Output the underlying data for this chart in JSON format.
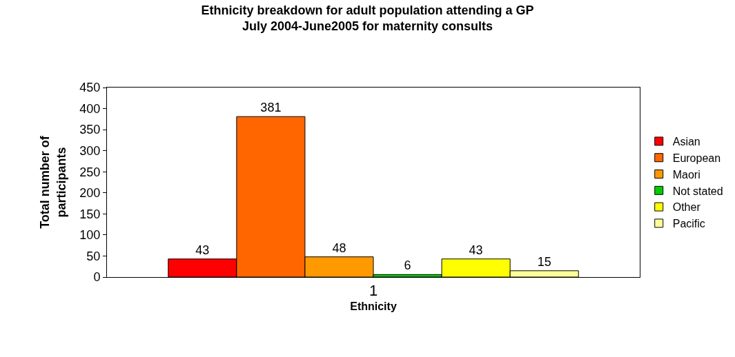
{
  "chart_data": {
    "type": "bar",
    "title": "Ethnicity breakdown for adult population attending a GP\nJuly 2004-June2005 for maternity consults",
    "xlabel": "Ethnicity",
    "ylabel": "Total number of participants",
    "categories": [
      "1"
    ],
    "series": [
      {
        "name": "Asian",
        "color": "#ff0000",
        "values": [
          43
        ]
      },
      {
        "name": "European",
        "color": "#ff6600",
        "values": [
          381
        ]
      },
      {
        "name": "Maori",
        "color": "#ff9900",
        "values": [
          48
        ]
      },
      {
        "name": "Not stated",
        "color": "#00cc00",
        "values": [
          6
        ]
      },
      {
        "name": "Other",
        "color": "#ffff00",
        "values": [
          43
        ]
      },
      {
        "name": "Pacific",
        "color": "#ffff99",
        "values": [
          15
        ]
      }
    ],
    "ylim": [
      0,
      450
    ],
    "yticks": [
      0,
      50,
      100,
      150,
      200,
      250,
      300,
      350,
      400,
      450
    ],
    "data_labels": true,
    "legend": "right"
  }
}
